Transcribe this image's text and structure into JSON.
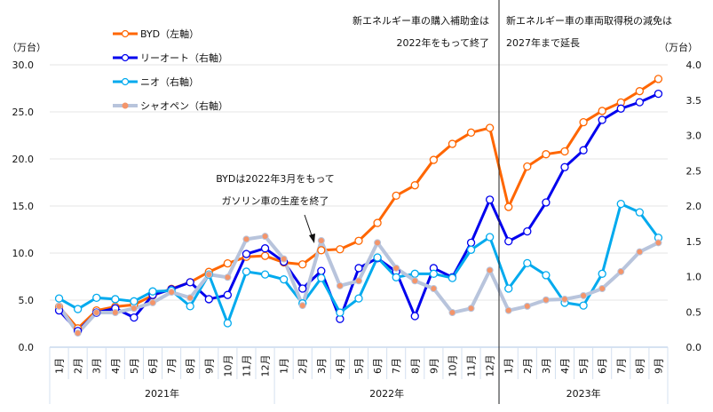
{
  "chart_data": {
    "type": "line",
    "left_unit": "（万台）",
    "right_unit": "（万台）",
    "left_ticks": [
      "0.0",
      "5.0",
      "10.0",
      "15.0",
      "20.0",
      "25.0",
      "30.0"
    ],
    "right_ticks": [
      "0.0",
      "0.5",
      "1.0",
      "1.5",
      "2.0",
      "2.5",
      "3.0",
      "3.5",
      "4.0"
    ],
    "left_ylim": [
      0,
      30
    ],
    "right_ylim": [
      0,
      4
    ],
    "months": [
      "1月",
      "2月",
      "3月",
      "4月",
      "5月",
      "6月",
      "7月",
      "8月",
      "9月",
      "10月",
      "11月",
      "12月",
      "1月",
      "2月",
      "3月",
      "4月",
      "5月",
      "6月",
      "7月",
      "8月",
      "9月",
      "10月",
      "11月",
      "12月",
      "1月",
      "2月",
      "3月",
      "4月",
      "5月",
      "6月",
      "7月",
      "8月",
      "9月"
    ],
    "years": [
      "2021年",
      "2022年",
      "2023年"
    ],
    "series": [
      {
        "name": "BYD（左軸）",
        "axis": "left",
        "color": "#ff6600",
        "marker": "hollow",
        "values": [
          4.3,
          2.0,
          3.9,
          4.3,
          4.5,
          5.5,
          6.2,
          6.9,
          8.0,
          8.9,
          9.6,
          9.7,
          9.0,
          8.8,
          10.3,
          10.4,
          11.3,
          13.2,
          16.1,
          17.2,
          19.9,
          21.6,
          22.8,
          23.3,
          14.9,
          19.2,
          20.5,
          20.8,
          23.9,
          25.1,
          26.0,
          27.2,
          28.5
        ]
      },
      {
        "name": "リーオート（右軸）",
        "axis": "right",
        "color": "#0000ee",
        "marker": "hollow",
        "values": [
          0.52,
          0.23,
          0.49,
          0.55,
          0.42,
          0.74,
          0.82,
          0.92,
          0.68,
          0.74,
          1.32,
          1.4,
          1.21,
          0.83,
          1.08,
          0.4,
          1.12,
          1.26,
          1.07,
          0.44,
          1.12,
          0.99,
          1.48,
          2.09,
          1.5,
          1.64,
          2.05,
          2.55,
          2.79,
          3.22,
          3.38,
          3.47,
          3.59
        ]
      },
      {
        "name": "ニオ（右軸）",
        "axis": "right",
        "color": "#00aaee",
        "marker": "hollow",
        "values": [
          0.69,
          0.54,
          0.7,
          0.68,
          0.65,
          0.79,
          0.8,
          0.58,
          1.03,
          0.34,
          1.07,
          1.03,
          0.96,
          0.62,
          0.98,
          0.49,
          0.69,
          1.27,
          0.99,
          1.04,
          1.04,
          0.98,
          1.38,
          1.56,
          0.83,
          1.19,
          1.02,
          0.63,
          0.59,
          1.04,
          2.03,
          1.91,
          1.55
        ]
      },
      {
        "name": "シャオペン（右軸）",
        "axis": "right",
        "color": "#b8c4dc",
        "marker": "filled",
        "marker_color": "#f4956a",
        "values": [
          0.58,
          0.2,
          0.49,
          0.49,
          0.55,
          0.63,
          0.78,
          0.7,
          1.03,
          0.99,
          1.53,
          1.57,
          1.25,
          0.59,
          1.51,
          0.87,
          0.94,
          1.48,
          1.12,
          0.94,
          0.83,
          0.49,
          0.55,
          1.09,
          0.52,
          0.58,
          0.67,
          0.68,
          0.73,
          0.83,
          1.07,
          1.35,
          1.48
        ]
      }
    ],
    "annotations": {
      "subsidy_line1": "新エネルギー車の購入補助金は",
      "subsidy_line2": "2022年をもって終了",
      "tax_line1": "新エネルギー車の車両取得税の減免は",
      "tax_line2": "2027年まで延長",
      "byd_line1": "BYDは2022年3月をもって",
      "byd_line2": "ガソリン車の生産を終了"
    },
    "legend_placement": "top-left"
  }
}
